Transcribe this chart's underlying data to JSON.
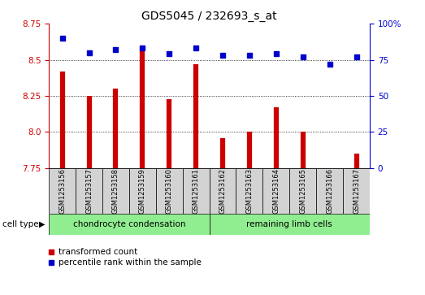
{
  "title": "GDS5045 / 232693_s_at",
  "samples": [
    "GSM1253156",
    "GSM1253157",
    "GSM1253158",
    "GSM1253159",
    "GSM1253160",
    "GSM1253161",
    "GSM1253162",
    "GSM1253163",
    "GSM1253164",
    "GSM1253165",
    "GSM1253166",
    "GSM1253167"
  ],
  "transformed_count": [
    8.42,
    8.25,
    8.3,
    8.57,
    8.23,
    8.47,
    7.96,
    8.0,
    8.17,
    8.0,
    7.75,
    7.85
  ],
  "percentile_rank": [
    90,
    80,
    82,
    83,
    79,
    83,
    78,
    78,
    79,
    77,
    72,
    77
  ],
  "bar_color": "#cc0000",
  "dot_color": "#0000cc",
  "ylim_left": [
    7.75,
    8.75
  ],
  "ylim_right": [
    0,
    100
  ],
  "yticks_left": [
    7.75,
    8.0,
    8.25,
    8.5,
    8.75
  ],
  "yticks_right": [
    0,
    25,
    50,
    75,
    100
  ],
  "grid_values": [
    8.5,
    8.25,
    8.0
  ],
  "group1_count": 6,
  "group1_label": "chondrocyte condensation",
  "group2_count": 6,
  "group2_label": "remaining limb cells",
  "group1_color": "#90ee90",
  "group2_color": "#90ee90",
  "sample_bg_color": "#d3d3d3",
  "cell_type_label": "cell type",
  "legend1_label": "transformed count",
  "legend2_label": "percentile rank within the sample",
  "left_tick_color": "#cc0000",
  "right_tick_color": "#0000cc",
  "title_fontsize": 10,
  "tick_fontsize": 7.5,
  "sample_fontsize": 6.0,
  "group_fontsize": 7.5,
  "legend_fontsize": 7.5,
  "cell_type_fontsize": 7.5
}
